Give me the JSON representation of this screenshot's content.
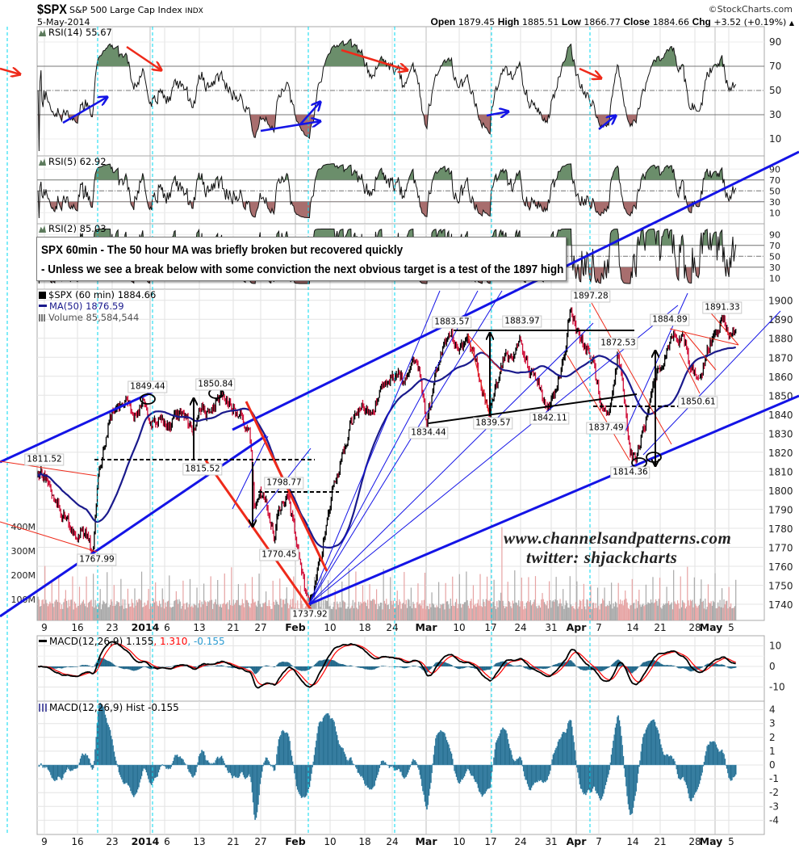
{
  "header": {
    "symbol": "$SPX",
    "name": "S&P 500 Large Cap Index",
    "exchange": "INDX",
    "date": "5-May-2014",
    "copyright": "©StockCharts.com",
    "quote": {
      "open_label": "Open",
      "open": "1879.45",
      "high_label": "High",
      "high": "1885.51",
      "low_label": "Low",
      "low": "1866.77",
      "close_label": "Close",
      "close": "1884.66",
      "chg_label": "Chg",
      "chg": "+3.52 (+0.19%)",
      "chg_arrow": "▲"
    }
  },
  "note": {
    "line1": "SPX 60min - The 50 hour MA was briefly broken but recovered quickly",
    "line2": "- Unless we see a break below with some conviction the next obvious target is a test of the 1897 high"
  },
  "watermark": {
    "site": "www.channelsandpatterns.com",
    "twitter": "twitter: shjackcharts"
  },
  "colors": {
    "up_bar": "#000000",
    "down_bar": "#d0103a",
    "ma": "#1a1a8c",
    "rsi_overbought_fill": "#6b8e6b",
    "rsi_oversold_fill": "#a86e6e",
    "macd_line": "#000000",
    "signal_line": "#ff0000",
    "histogram": "#246a8c",
    "trendline_blue": "#1414e6",
    "trendline_red": "#ee2a1a",
    "cycle_marker": "#00d8f0"
  },
  "chart_data": {
    "type": "bar",
    "title": "$SPX (60 min)",
    "x_unit": "trading days since 9-Dec-2013",
    "x_ticks": [
      "9",
      "16",
      "23",
      "2014",
      "6",
      "13",
      "21",
      "27",
      "Feb",
      "10",
      "18",
      "24",
      "Mar",
      "10",
      "17",
      "24",
      "31",
      "Apr",
      "7",
      "14",
      "21",
      "28",
      "May",
      "5"
    ],
    "price": {
      "label": "$SPX (60 min)",
      "last": "1884.66",
      "ylim": [
        1735,
        1905
      ],
      "yticks": [
        "1900",
        "1890",
        "1880",
        "1870",
        "1860",
        "1850",
        "1840",
        "1830",
        "1820",
        "1810",
        "1800",
        "1790",
        "1780",
        "1770",
        "1760",
        "1750",
        "1740"
      ],
      "waypoints": [
        [
          -0.8,
          1811
        ],
        [
          0.7,
          1805
        ],
        [
          2.5,
          1790
        ],
        [
          4.2,
          1780
        ],
        [
          6.0,
          1778
        ],
        [
          7.1,
          1768
        ],
        [
          7.7,
          1800
        ],
        [
          8.3,
          1815
        ],
        [
          9.5,
          1838
        ],
        [
          11.2,
          1843
        ],
        [
          12.4,
          1846
        ],
        [
          13.6,
          1840
        ],
        [
          14.7,
          1849
        ],
        [
          15.9,
          1835
        ],
        [
          17.1,
          1838
        ],
        [
          18.2,
          1832
        ],
        [
          19.4,
          1840
        ],
        [
          20.6,
          1838
        ],
        [
          21.7,
          1830
        ],
        [
          22.9,
          1845
        ],
        [
          24.1,
          1840
        ],
        [
          25.2,
          1850
        ],
        [
          27.0,
          1845
        ],
        [
          28.7,
          1840
        ],
        [
          29.9,
          1828
        ],
        [
          30.5,
          1790
        ],
        [
          31.1,
          1800
        ],
        [
          32.2,
          1795
        ],
        [
          33.4,
          1775
        ],
        [
          34.0,
          1790
        ],
        [
          35.2,
          1795
        ],
        [
          36.3,
          1780
        ],
        [
          37.1,
          1760
        ],
        [
          37.9,
          1745
        ],
        [
          38.4,
          1738
        ],
        [
          39.3,
          1750
        ],
        [
          40.4,
          1770
        ],
        [
          41.6,
          1795
        ],
        [
          42.8,
          1810
        ],
        [
          43.9,
          1825
        ],
        [
          45.1,
          1840
        ],
        [
          46.3,
          1845
        ],
        [
          47.4,
          1840
        ],
        [
          48.6,
          1850
        ],
        [
          49.8,
          1855
        ],
        [
          50.9,
          1862
        ],
        [
          52.1,
          1858
        ],
        [
          53.3,
          1870
        ],
        [
          54.4,
          1862
        ],
        [
          55.4,
          1835
        ],
        [
          56.8,
          1860
        ],
        [
          57.9,
          1875
        ],
        [
          59.1,
          1880
        ],
        [
          60.3,
          1875
        ],
        [
          61.4,
          1878
        ],
        [
          62.6,
          1868
        ],
        [
          63.8,
          1850
        ],
        [
          64.6,
          1840
        ],
        [
          65.5,
          1855
        ],
        [
          66.7,
          1870
        ],
        [
          67.9,
          1872
        ],
        [
          69.0,
          1880
        ],
        [
          70.2,
          1865
        ],
        [
          71.4,
          1858
        ],
        [
          73.1,
          1843
        ],
        [
          74.3,
          1855
        ],
        [
          75.5,
          1875
        ],
        [
          76.2,
          1897
        ],
        [
          77.2,
          1885
        ],
        [
          78.4,
          1875
        ],
        [
          79.5,
          1868
        ],
        [
          80.7,
          1845
        ],
        [
          81.9,
          1838
        ],
        [
          83.1,
          1872
        ],
        [
          84.2,
          1845
        ],
        [
          85.0,
          1820
        ],
        [
          85.7,
          1815
        ],
        [
          86.6,
          1830
        ],
        [
          87.7,
          1843
        ],
        [
          88.9,
          1865
        ],
        [
          90.1,
          1870
        ],
        [
          91.2,
          1884
        ],
        [
          92.4,
          1880
        ],
        [
          93.6,
          1868
        ],
        [
          94.7,
          1855
        ],
        [
          95.6,
          1865
        ],
        [
          96.5,
          1878
        ],
        [
          97.7,
          1885
        ],
        [
          98.5,
          1891
        ],
        [
          99.4,
          1880
        ],
        [
          100.2,
          1884.66
        ]
      ]
    },
    "ma": {
      "label": "MA(50)",
      "period": 50,
      "last": "1876.59"
    },
    "volume": {
      "label": "Volume",
      "last": "85,584,544",
      "ticks": [
        "400M",
        "300M",
        "200M",
        "100M"
      ]
    },
    "rsi": [
      {
        "label": "RSI(14)",
        "period": 14,
        "last": "55.67"
      },
      {
        "label": "RSI(5)",
        "period": 5,
        "last": "62.92"
      },
      {
        "label": "RSI(2)",
        "period": 2,
        "last": "85.03"
      }
    ],
    "rsi_ticks": [
      "90",
      "70",
      "50",
      "30",
      "10"
    ],
    "macd": {
      "label": "MACD(12,26,9)",
      "macd": "1.155",
      "signal": "1.310",
      "hist": "-0.155",
      "ticks": [
        "10",
        "0",
        "-10"
      ]
    },
    "macd_hist": {
      "label": "MACD(12,26,9) Hist",
      "last": "-0.155",
      "ticks": [
        "4",
        "3",
        "2",
        "1",
        "0",
        "-1",
        "-2",
        "-3",
        "-4"
      ]
    },
    "annotations": [
      "1811.52",
      "1767.99",
      "1849.44",
      "1850.84",
      "1815.52",
      "1798.77",
      "1770.45",
      "1737.92",
      "1883.57",
      "1883.97",
      "1834.44",
      "1839.57",
      "1842.11",
      "1897.28",
      "1872.53",
      "1837.49",
      "1814.36",
      "1884.89",
      "1891.33",
      "1850.61"
    ]
  }
}
